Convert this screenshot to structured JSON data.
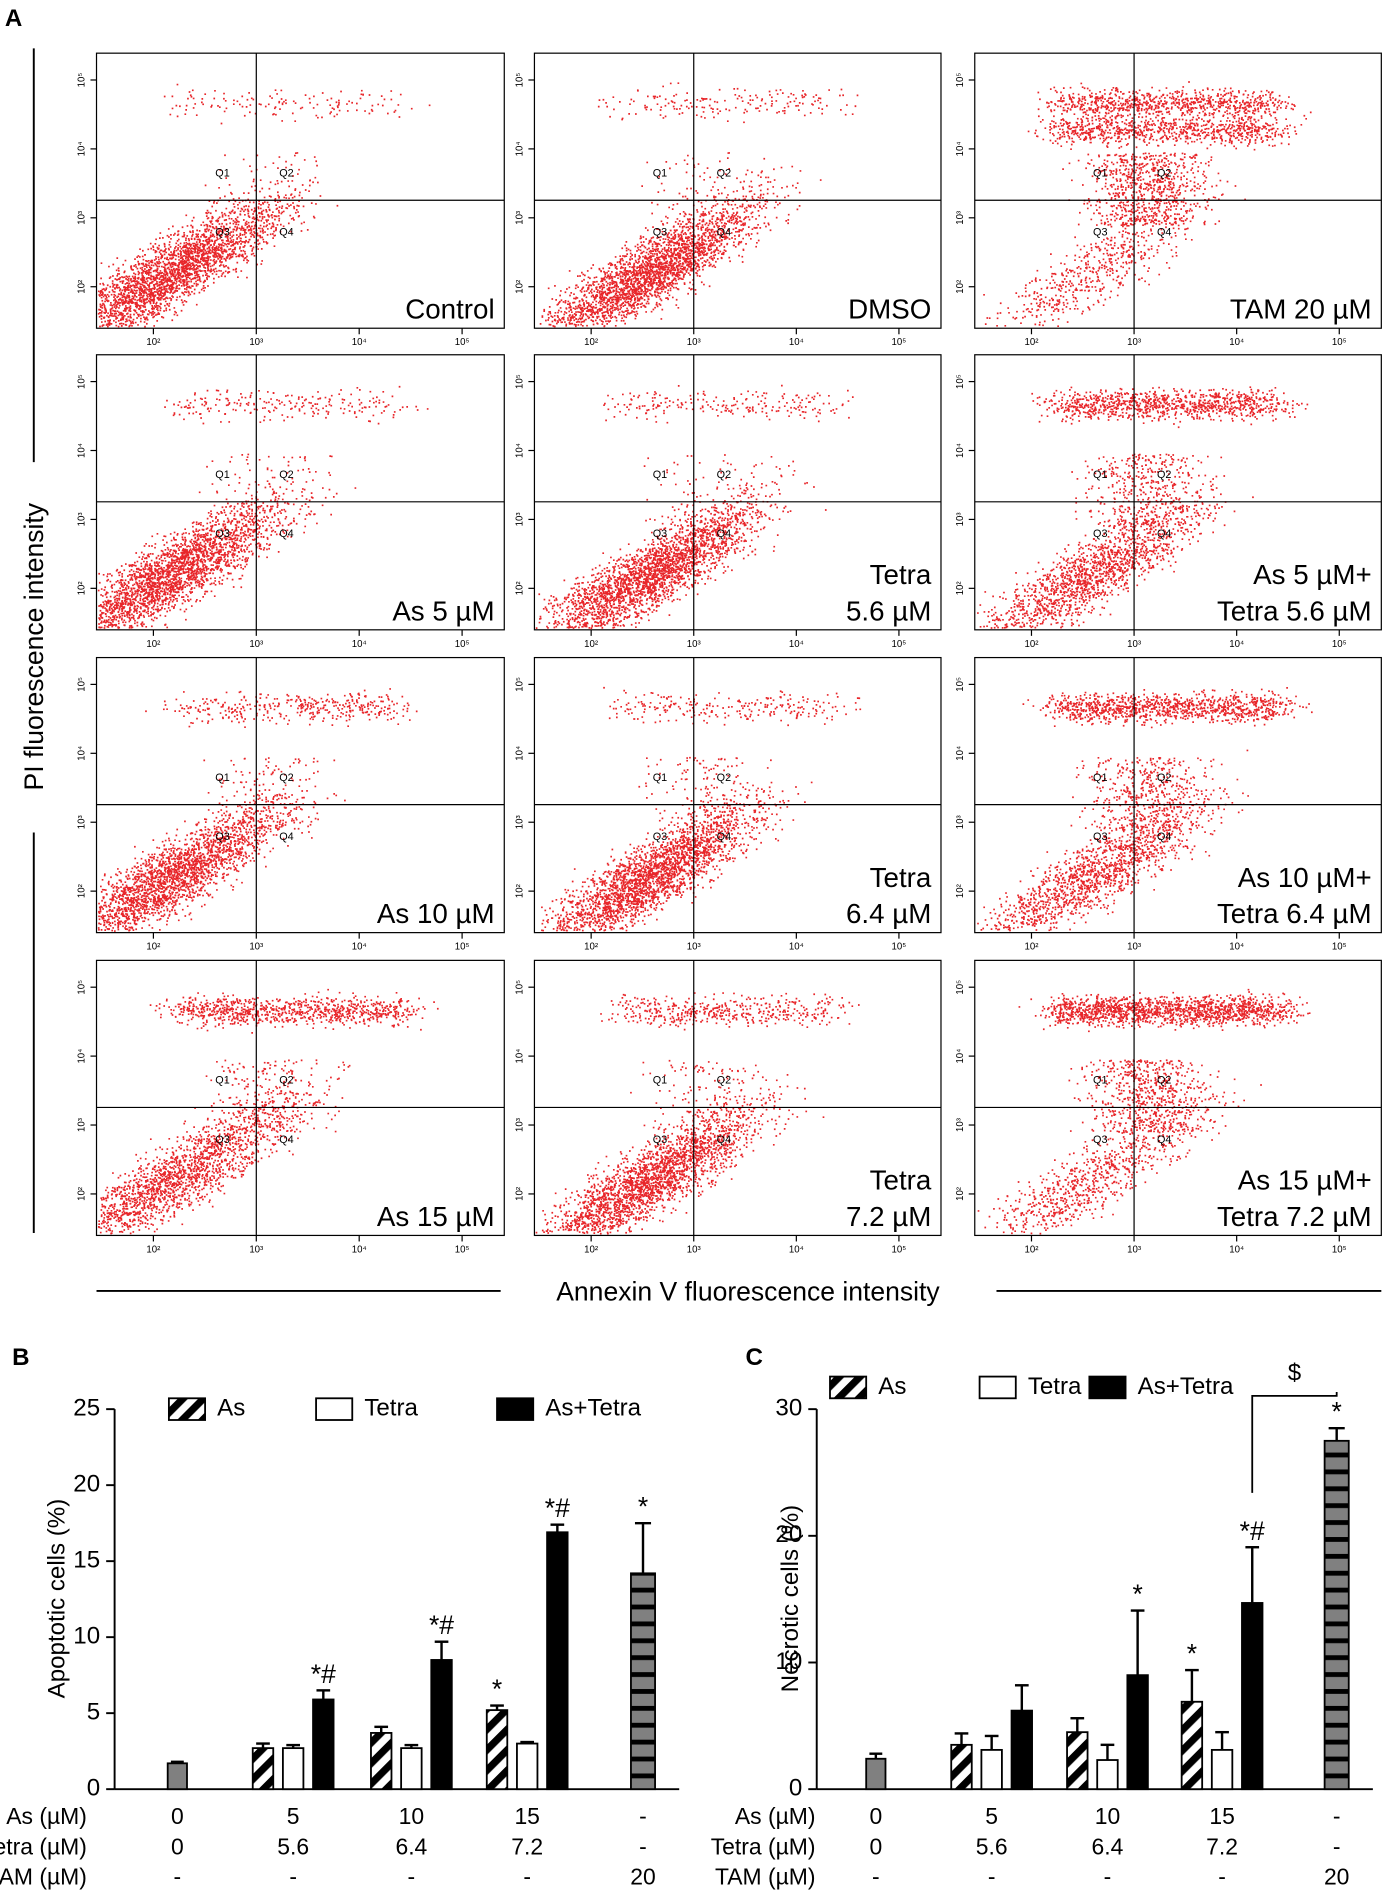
{
  "chart_data": [
    {
      "type": "flow",
      "letter": "A",
      "xlabel": "Annexin V fluorescence intensity",
      "ylabel": "PI fluorescence intensity",
      "log_scale": true,
      "xlim": [
        28,
        257000
      ],
      "ylim": [
        25,
        245000
      ],
      "xticks": [
        {
          "value": 100,
          "label": "10²"
        },
        {
          "value": 1000,
          "label": "10³"
        },
        {
          "value": 10000,
          "label": "10⁴"
        },
        {
          "value": 100000,
          "label": "10⁵"
        }
      ],
      "yticks": [
        {
          "value": 100,
          "label": "10²"
        },
        {
          "value": 1000,
          "label": "10³"
        },
        {
          "value": 10000,
          "label": "10⁴"
        },
        {
          "value": 100000,
          "label": "10⁵"
        }
      ],
      "gate": {
        "x": 1000,
        "y": 1800
      },
      "quadrants": [
        "Q1",
        "Q2",
        "Q3",
        "Q4"
      ],
      "dot_color": "#e8262a",
      "panels": [
        {
          "label": [
            "Control"
          ]
        },
        {
          "label": [
            "DMSO"
          ]
        },
        {
          "label": [
            "TAM 20 µM"
          ]
        },
        {
          "label": [
            "As 5 µM"
          ]
        },
        {
          "label": [
            "Tetra",
            "5.6 µM"
          ]
        },
        {
          "label": [
            "As 5 µM+",
            "Tetra 5.6 µM"
          ]
        },
        {
          "label": [
            "As 10 µM"
          ]
        },
        {
          "label": [
            "Tetra",
            "6.4 µM"
          ]
        },
        {
          "label": [
            "As 10 µM+",
            "Tetra 6.4 µM"
          ]
        },
        {
          "label": [
            "As 15 µM"
          ]
        },
        {
          "label": [
            "Tetra",
            "7.2 µM"
          ]
        },
        {
          "label": [
            "As 15 µM+",
            "Tetra 7.2 µM"
          ]
        }
      ]
    },
    {
      "type": "bar",
      "letter": "B",
      "ylabel": "Apoptotic cells (%)",
      "ylim": [
        0,
        25
      ],
      "yticks": [
        0,
        5,
        10,
        15,
        20,
        25
      ],
      "rows": [
        {
          "label": "As (µM)",
          "values": [
            0,
            5,
            10,
            15,
            "-"
          ]
        },
        {
          "label": "Tetra (µM)",
          "values": [
            0,
            5.6,
            6.4,
            7.2,
            "-"
          ]
        },
        {
          "label": "TAM (µM)",
          "values": [
            "-",
            "-",
            "-",
            "-",
            20
          ]
        }
      ],
      "control": {
        "value": 1.7,
        "error": 0.1,
        "color": "#808080"
      },
      "tam": {
        "value": 14.2,
        "error": 3.3,
        "color": "#808080",
        "pattern": "horizontal",
        "label": "*"
      },
      "series": [
        {
          "name": "As",
          "color": "#000000",
          "pattern": "diagonal",
          "values": [
            null,
            2.7,
            3.7,
            5.2,
            null
          ],
          "errors": [
            null,
            0.3,
            0.4,
            0.3,
            null
          ],
          "labels": [
            null,
            null,
            null,
            "*",
            null
          ]
        },
        {
          "name": "Tetra",
          "color": "#ffffff",
          "values": [
            null,
            2.7,
            2.7,
            3.0,
            null
          ],
          "errors": [
            null,
            0.2,
            0.2,
            0.1,
            null
          ],
          "labels": [
            null,
            null,
            null,
            null,
            null
          ]
        },
        {
          "name": "As+Tetra",
          "color": "#000000",
          "values": [
            null,
            5.9,
            8.5,
            16.9,
            null
          ],
          "errors": [
            null,
            0.6,
            1.2,
            0.5,
            null
          ],
          "labels": [
            null,
            "*#",
            "*#",
            "*#",
            null
          ]
        }
      ]
    },
    {
      "type": "bar",
      "letter": "C",
      "ylabel": "Necrotic cells (%)",
      "ylim": [
        0,
        30
      ],
      "yticks": [
        0,
        10,
        20,
        30
      ],
      "rows": [
        {
          "label": "As (µM)",
          "values": [
            0,
            5,
            10,
            15,
            "-"
          ]
        },
        {
          "label": "Tetra (µM)",
          "values": [
            0,
            5.6,
            6.4,
            7.2,
            "-"
          ]
        },
        {
          "label": "TAM (µM)",
          "values": [
            "-",
            "-",
            "-",
            "-",
            20
          ]
        }
      ],
      "control": {
        "value": 2.4,
        "error": 0.4,
        "color": "#808080"
      },
      "tam": {
        "value": 27.5,
        "error": 1.0,
        "color": "#808080",
        "pattern": "horizontal",
        "label": "*"
      },
      "bracket": "$",
      "series": [
        {
          "name": "As",
          "color": "#000000",
          "pattern": "diagonal",
          "values": [
            null,
            3.5,
            4.5,
            6.9,
            null
          ],
          "errors": [
            null,
            0.9,
            1.1,
            2.5,
            null
          ],
          "labels": [
            null,
            null,
            null,
            "*",
            null
          ]
        },
        {
          "name": "Tetra",
          "color": "#ffffff",
          "values": [
            null,
            3.1,
            2.3,
            3.1,
            null
          ],
          "errors": [
            null,
            1.1,
            1.2,
            1.4,
            null
          ],
          "labels": [
            null,
            null,
            null,
            null,
            null
          ]
        },
        {
          "name": "As+Tetra",
          "color": "#000000",
          "values": [
            null,
            6.2,
            9.0,
            14.7,
            null
          ],
          "errors": [
            null,
            2.0,
            5.1,
            4.4,
            null
          ],
          "labels": [
            null,
            null,
            "*",
            "*#",
            null
          ]
        }
      ]
    }
  ]
}
